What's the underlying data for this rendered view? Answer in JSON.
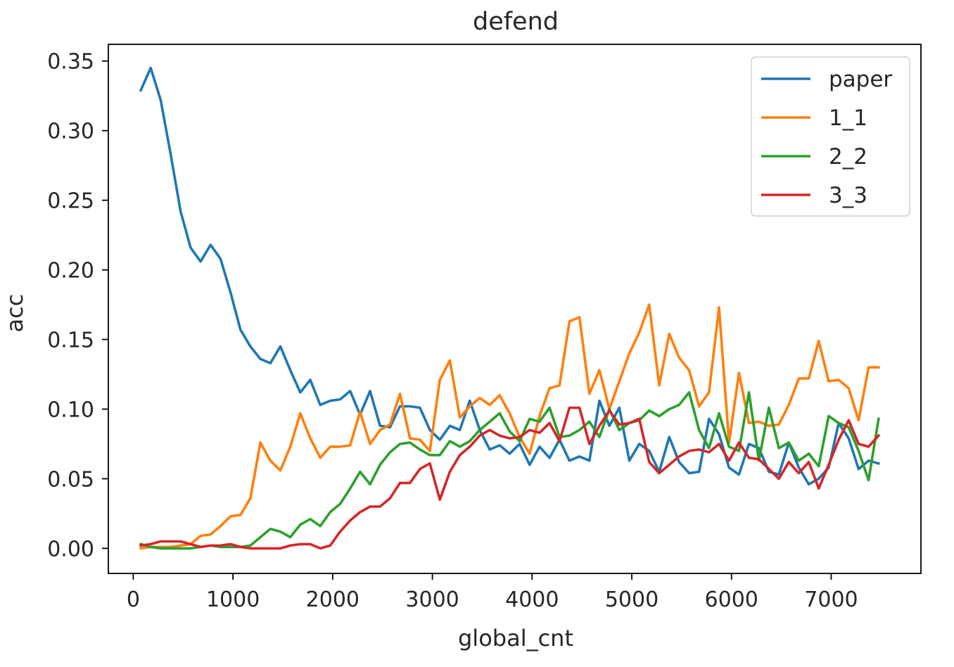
{
  "chart_data": {
    "type": "line",
    "title": "defend",
    "xlabel": "global_cnt",
    "ylabel": "acc",
    "xlim": [
      -250,
      7900
    ],
    "ylim": [
      -0.018,
      0.362
    ],
    "xticks": [
      0,
      1000,
      2000,
      3000,
      4000,
      5000,
      6000,
      7000
    ],
    "xtick_labels": [
      "0",
      "1000",
      "2000",
      "3000",
      "4000",
      "5000",
      "6000",
      "7000"
    ],
    "yticks": [
      0.0,
      0.05,
      0.1,
      0.15,
      0.2,
      0.25,
      0.3,
      0.35
    ],
    "ytick_labels": [
      "0.00",
      "0.05",
      "0.10",
      "0.15",
      "0.20",
      "0.25",
      "0.30",
      "0.35"
    ],
    "grid": false,
    "legend_position": "top-right",
    "x": [
      75,
      175,
      275,
      375,
      475,
      575,
      675,
      775,
      875,
      975,
      1075,
      1175,
      1275,
      1375,
      1475,
      1575,
      1675,
      1775,
      1875,
      1975,
      2075,
      2175,
      2275,
      2375,
      2475,
      2575,
      2675,
      2775,
      2875,
      2975,
      3075,
      3175,
      3275,
      3375,
      3475,
      3575,
      3675,
      3775,
      3875,
      3975,
      4075,
      4175,
      4275,
      4375,
      4475,
      4575,
      4675,
      4775,
      4875,
      4975,
      5075,
      5175,
      5275,
      5375,
      5475,
      5575,
      5675,
      5775,
      5875,
      5975,
      6075,
      6175,
      6275,
      6375,
      6475,
      6575,
      6675,
      6775,
      6875,
      6975,
      7075,
      7175,
      7275,
      7375,
      7475
    ],
    "series": [
      {
        "name": "paper",
        "color": "#1f77b4",
        "values": [
          0.329,
          0.345,
          0.322,
          0.283,
          0.242,
          0.216,
          0.206,
          0.218,
          0.208,
          0.184,
          0.157,
          0.145,
          0.136,
          0.133,
          0.145,
          0.128,
          0.112,
          0.121,
          0.103,
          0.106,
          0.107,
          0.113,
          0.096,
          0.113,
          0.088,
          0.087,
          0.102,
          0.102,
          0.101,
          0.085,
          0.078,
          0.088,
          0.085,
          0.106,
          0.085,
          0.071,
          0.074,
          0.068,
          0.075,
          0.06,
          0.073,
          0.065,
          0.078,
          0.063,
          0.066,
          0.063,
          0.106,
          0.088,
          0.101,
          0.063,
          0.075,
          0.07,
          0.055,
          0.08,
          0.062,
          0.054,
          0.055,
          0.093,
          0.082,
          0.058,
          0.053,
          0.075,
          0.072,
          0.055,
          0.053,
          0.076,
          0.058,
          0.046,
          0.05,
          0.058,
          0.09,
          0.079,
          0.057,
          0.063,
          0.061
        ]
      },
      {
        "name": "1_1",
        "color": "#ff7f0e",
        "values": [
          0.0,
          0.001,
          0.001,
          0.001,
          0.002,
          0.003,
          0.009,
          0.01,
          0.016,
          0.023,
          0.024,
          0.036,
          0.076,
          0.063,
          0.056,
          0.073,
          0.097,
          0.079,
          0.065,
          0.073,
          0.073,
          0.074,
          0.098,
          0.075,
          0.085,
          0.089,
          0.111,
          0.079,
          0.078,
          0.07,
          0.121,
          0.135,
          0.094,
          0.102,
          0.108,
          0.103,
          0.11,
          0.097,
          0.08,
          0.068,
          0.095,
          0.115,
          0.117,
          0.163,
          0.166,
          0.111,
          0.128,
          0.1,
          0.12,
          0.14,
          0.155,
          0.175,
          0.117,
          0.154,
          0.137,
          0.128,
          0.102,
          0.112,
          0.173,
          0.076,
          0.126,
          0.09,
          0.091,
          0.088,
          0.089,
          0.103,
          0.122,
          0.122,
          0.149,
          0.12,
          0.121,
          0.115,
          0.092,
          0.13,
          0.13
        ]
      },
      {
        "name": "2_2",
        "color": "#2ca02c",
        "values": [
          0.003,
          0.001,
          0.0,
          0.0,
          0.0,
          0.0,
          0.001,
          0.002,
          0.001,
          0.001,
          0.001,
          0.002,
          0.008,
          0.014,
          0.012,
          0.008,
          0.017,
          0.021,
          0.016,
          0.026,
          0.032,
          0.043,
          0.055,
          0.046,
          0.06,
          0.069,
          0.075,
          0.076,
          0.071,
          0.067,
          0.067,
          0.077,
          0.073,
          0.077,
          0.085,
          0.091,
          0.097,
          0.084,
          0.077,
          0.093,
          0.091,
          0.101,
          0.08,
          0.081,
          0.085,
          0.091,
          0.08,
          0.1,
          0.085,
          0.09,
          0.092,
          0.099,
          0.095,
          0.1,
          0.103,
          0.112,
          0.085,
          0.072,
          0.097,
          0.073,
          0.07,
          0.112,
          0.063,
          0.101,
          0.072,
          0.076,
          0.063,
          0.068,
          0.059,
          0.095,
          0.09,
          0.087,
          0.07,
          0.049,
          0.093
        ]
      },
      {
        "name": "3_3",
        "color": "#d62728",
        "values": [
          0.002,
          0.003,
          0.005,
          0.005,
          0.005,
          0.003,
          0.001,
          0.002,
          0.002,
          0.003,
          0.001,
          0.0,
          0.0,
          0.0,
          0.0,
          0.002,
          0.003,
          0.003,
          0.0,
          0.002,
          0.012,
          0.02,
          0.026,
          0.03,
          0.03,
          0.036,
          0.047,
          0.047,
          0.057,
          0.061,
          0.035,
          0.055,
          0.067,
          0.073,
          0.081,
          0.085,
          0.081,
          0.079,
          0.08,
          0.085,
          0.083,
          0.09,
          0.077,
          0.101,
          0.101,
          0.075,
          0.088,
          0.099,
          0.089,
          0.09,
          0.093,
          0.062,
          0.054,
          0.06,
          0.066,
          0.07,
          0.071,
          0.069,
          0.075,
          0.063,
          0.076,
          0.065,
          0.064,
          0.057,
          0.05,
          0.062,
          0.054,
          0.062,
          0.043,
          0.06,
          0.078,
          0.092,
          0.075,
          0.073,
          0.081
        ]
      }
    ]
  }
}
